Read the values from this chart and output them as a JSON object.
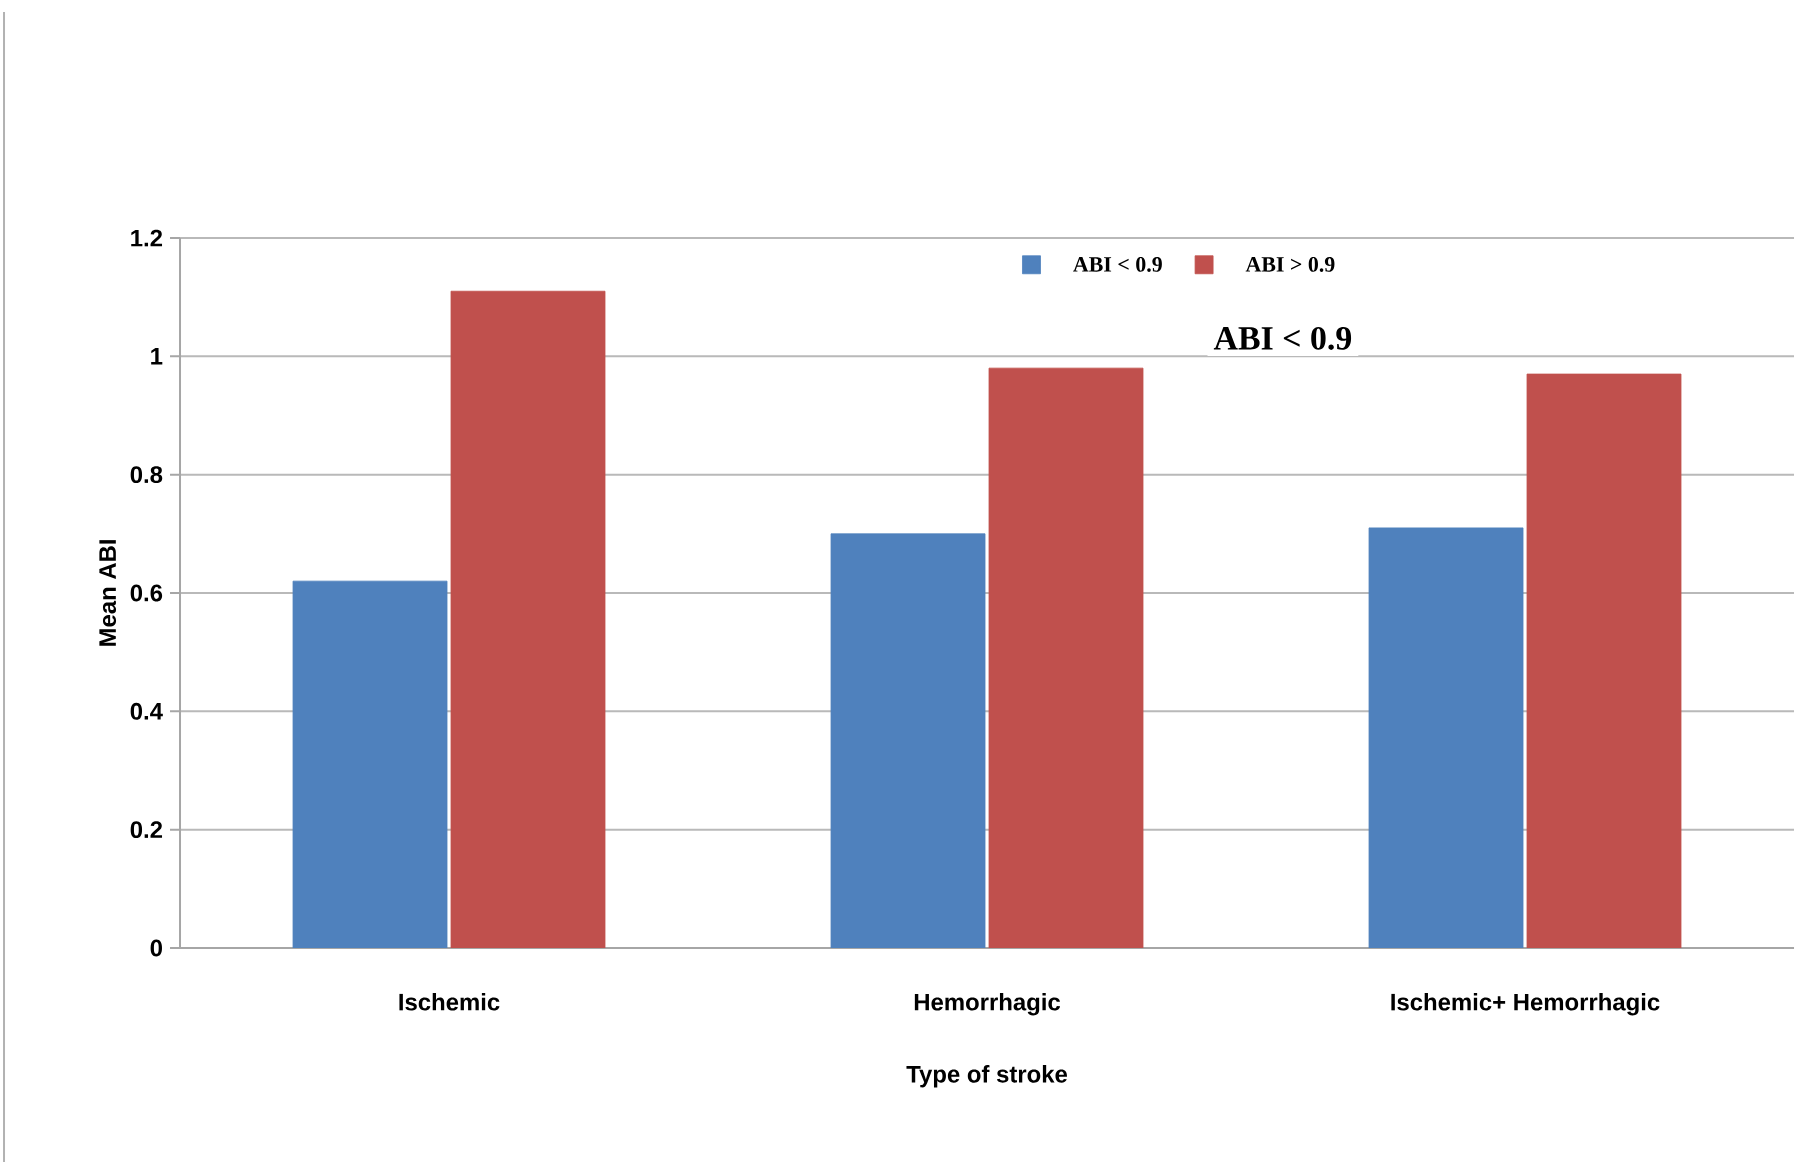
{
  "chart_data": {
    "type": "bar",
    "xlabel": "Type of stroke",
    "ylabel": "Mean ABI",
    "categories": [
      "Ischemic",
      "Hemorrhagic",
      "Ischemic+ Hemorrhagic"
    ],
    "series": [
      {
        "name": "ABI < 0.9",
        "color": "#4f81bd",
        "values": [
          0.62,
          0.7,
          0.71
        ]
      },
      {
        "name": "ABI > 0.9",
        "color": "#c0504d",
        "values": [
          1.11,
          0.98,
          0.97
        ]
      }
    ],
    "ylim": [
      0,
      1.2
    ],
    "yticks": [
      0,
      0.2,
      0.4,
      0.6,
      0.8,
      1,
      1.2
    ],
    "grid": "y",
    "legend": "top",
    "annotations": [
      "ABI < 0.9"
    ]
  }
}
